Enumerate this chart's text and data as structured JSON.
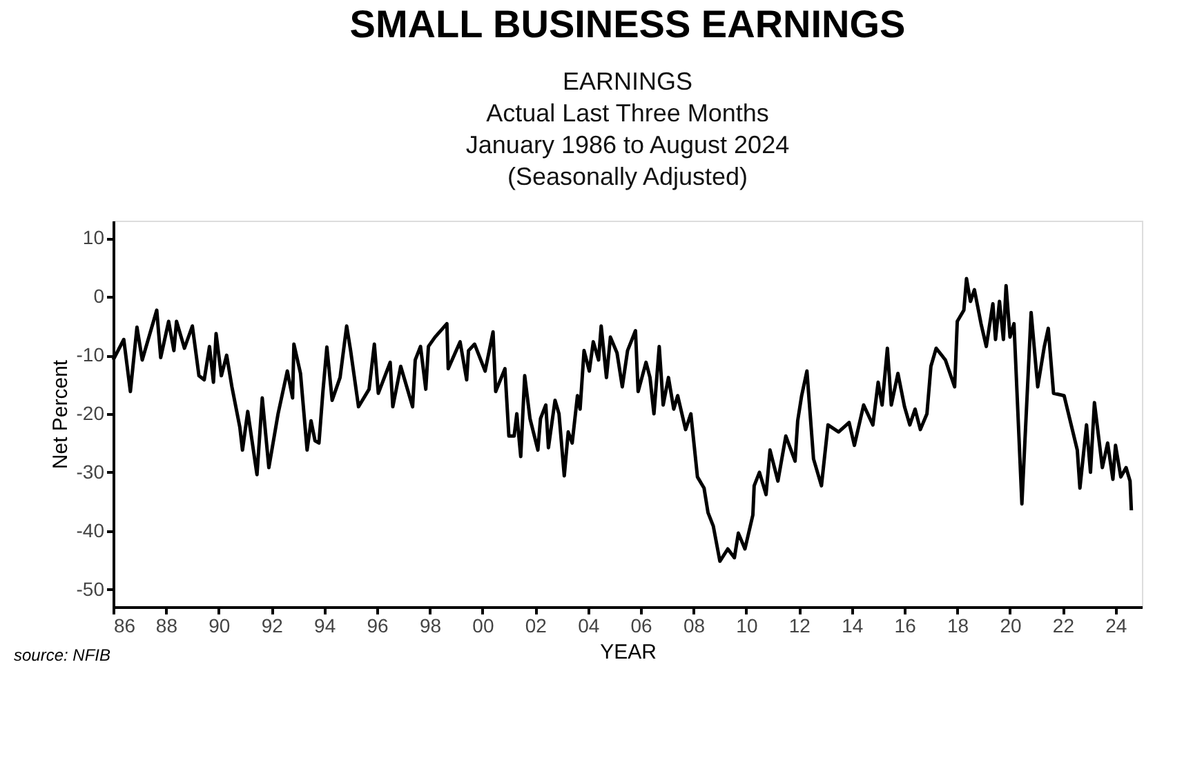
{
  "chart_data": {
    "type": "line",
    "title": "SMALL BUSINESS EARNINGS",
    "subtitle": [
      "EARNINGS",
      "Actual Last Three Months",
      "January 1986 to August 2024",
      "(Seasonally Adjusted)"
    ],
    "xlabel": "YEAR",
    "ylabel": "Net Percent",
    "annotations": [
      "source: NFIB"
    ],
    "xlim": [
      1986,
      2025
    ],
    "xticks": [
      {
        "value": 1986,
        "label": "86"
      },
      {
        "value": 1988,
        "label": "88"
      },
      {
        "value": 1990,
        "label": "90"
      },
      {
        "value": 1992,
        "label": "92"
      },
      {
        "value": 1994,
        "label": "94"
      },
      {
        "value": 1996,
        "label": "96"
      },
      {
        "value": 1998,
        "label": "98"
      },
      {
        "value": 2000,
        "label": "00"
      },
      {
        "value": 2002,
        "label": "02"
      },
      {
        "value": 2004,
        "label": "04"
      },
      {
        "value": 2006,
        "label": "06"
      },
      {
        "value": 2008,
        "label": "08"
      },
      {
        "value": 2010,
        "label": "10"
      },
      {
        "value": 2012,
        "label": "12"
      },
      {
        "value": 2014,
        "label": "14"
      },
      {
        "value": 2016,
        "label": "16"
      },
      {
        "value": 2018,
        "label": "18"
      },
      {
        "value": 2020,
        "label": "20"
      },
      {
        "value": 2022,
        "label": "22"
      },
      {
        "value": 2024,
        "label": "24"
      }
    ],
    "ylim": [
      -53,
      13
    ],
    "yticks": [
      -50,
      -40,
      -30,
      -20,
      -10,
      0,
      10
    ],
    "grid": false,
    "marker": "none",
    "line_style": "solid",
    "series": [
      {
        "color": "#000000",
        "x": [
          1986.0,
          1986.4,
          1986.65,
          1986.9,
          1987.1,
          1987.65,
          1987.8,
          1988.1,
          1988.3,
          1988.4,
          1988.7,
          1989.0,
          1989.25,
          1989.45,
          1989.65,
          1989.8,
          1989.9,
          1990.1,
          1990.3,
          1990.5,
          1990.8,
          1990.9,
          1991.1,
          1991.45,
          1991.65,
          1991.9,
          1992.25,
          1992.6,
          1992.8,
          1992.85,
          1993.1,
          1993.35,
          1993.5,
          1993.65,
          1993.8,
          1993.95,
          1994.1,
          1994.3,
          1994.6,
          1994.85,
          1995.0,
          1995.3,
          1995.7,
          1995.9,
          1996.05,
          1996.5,
          1996.6,
          1996.9,
          1997.35,
          1997.45,
          1997.65,
          1997.85,
          1997.95,
          1998.2,
          1998.65,
          1998.7,
          1999.15,
          1999.4,
          1999.47,
          1999.7,
          2000.1,
          2000.4,
          2000.5,
          2000.85,
          2001.0,
          2001.2,
          2001.3,
          2001.45,
          2001.6,
          2001.8,
          2002.1,
          2002.2,
          2002.4,
          2002.5,
          2002.75,
          2002.9,
          2003.1,
          2003.25,
          2003.4,
          2003.6,
          2003.7,
          2003.85,
          2004.05,
          2004.2,
          2004.4,
          2004.5,
          2004.7,
          2004.85,
          2005.1,
          2005.3,
          2005.5,
          2005.8,
          2005.9,
          2006.2,
          2006.35,
          2006.5,
          2006.7,
          2006.85,
          2007.05,
          2007.25,
          2007.4,
          2007.7,
          2007.9,
          2008.15,
          2008.4,
          2008.55,
          2008.75,
          2009.0,
          2009.3,
          2009.55,
          2009.7,
          2009.95,
          2010.25,
          2010.3,
          2010.5,
          2010.75,
          2010.9,
          2011.2,
          2011.5,
          2011.85,
          2011.95,
          2012.1,
          2012.3,
          2012.55,
          2012.85,
          2013.1,
          2013.5,
          2013.9,
          2014.1,
          2014.45,
          2014.8,
          2015.0,
          2015.15,
          2015.35,
          2015.5,
          2015.75,
          2016.0,
          2016.2,
          2016.4,
          2016.6,
          2016.85,
          2017.0,
          2017.2,
          2017.55,
          2017.9,
          2018.0,
          2018.25,
          2018.35,
          2018.5,
          2018.65,
          2018.9,
          2019.1,
          2019.35,
          2019.45,
          2019.6,
          2019.75,
          2019.85,
          2020.0,
          2020.15,
          2020.45,
          2020.8,
          2021.05,
          2021.3,
          2021.45,
          2021.65,
          2022.05,
          2022.55,
          2022.65,
          2022.9,
          2023.05,
          2023.2,
          2023.5,
          2023.7,
          2023.9,
          2024.0,
          2024.2,
          2024.4,
          2024.55,
          2024.6
        ],
        "values": [
          -10.8,
          -7.3,
          -16.2,
          -5.2,
          -10.8,
          -2.3,
          -10.4,
          -4.2,
          -9.2,
          -4.2,
          -8.8,
          -5,
          -13.5,
          -14.2,
          -8.5,
          -14.6,
          -6.3,
          -13.5,
          -10,
          -15.4,
          -22.3,
          -26.2,
          -19.6,
          -30.4,
          -17.3,
          -29.2,
          -20,
          -12.7,
          -17.3,
          -8.1,
          -13.1,
          -26.2,
          -21.2,
          -24.6,
          -25,
          -16.2,
          -8.6,
          -17.7,
          -13.8,
          -5,
          -9.2,
          -18.8,
          -15.8,
          -8.1,
          -16.5,
          -11.2,
          -18.8,
          -11.9,
          -18.8,
          -10.8,
          -8.5,
          -15.8,
          -8.5,
          -6.9,
          -4.6,
          -12.3,
          -7.7,
          -14.2,
          -9.2,
          -8.1,
          -12.7,
          -6,
          -16.2,
          -12.3,
          -23.8,
          -23.8,
          -20,
          -27.3,
          -13.5,
          -20.8,
          -26.2,
          -20.8,
          -18.5,
          -25.8,
          -17.7,
          -20,
          -30.6,
          -23.1,
          -25,
          -16.9,
          -19.2,
          -9.2,
          -12.7,
          -7.7,
          -10.8,
          -5,
          -13.8,
          -6.9,
          -9.6,
          -15.4,
          -9.2,
          -5.8,
          -16.2,
          -11.2,
          -13.8,
          -20,
          -8.5,
          -18.5,
          -13.8,
          -19.2,
          -16.9,
          -22.7,
          -20,
          -30.8,
          -32.7,
          -36.9,
          -39.2,
          -45.2,
          -43.1,
          -44.6,
          -40.4,
          -43.1,
          -37.3,
          -32.3,
          -30,
          -33.8,
          -26.2,
          -31.5,
          -23.8,
          -28.1,
          -21.2,
          -16.9,
          -12.7,
          -27.7,
          -32.3,
          -21.9,
          -23.1,
          -21.5,
          -25.4,
          -18.5,
          -21.9,
          -14.6,
          -18.5,
          -8.8,
          -18.5,
          -13.1,
          -18.8,
          -21.9,
          -19.2,
          -22.7,
          -20,
          -11.9,
          -8.8,
          -10.8,
          -15.4,
          -4.2,
          -2.3,
          3.1,
          -0.8,
          1.2,
          -4.6,
          -8.5,
          -1.2,
          -7.3,
          -0.8,
          -7.3,
          1.9,
          -6.9,
          -4.6,
          -35.4,
          -2.7,
          -15.4,
          -8.5,
          -5.4,
          -16.5,
          -16.9,
          -26.2,
          -32.7,
          -21.9,
          -30,
          -18.1,
          -29.2,
          -25,
          -31.2,
          -25.4,
          -30.8,
          -29.2,
          -31.5,
          -36.5
        ]
      }
    ]
  }
}
